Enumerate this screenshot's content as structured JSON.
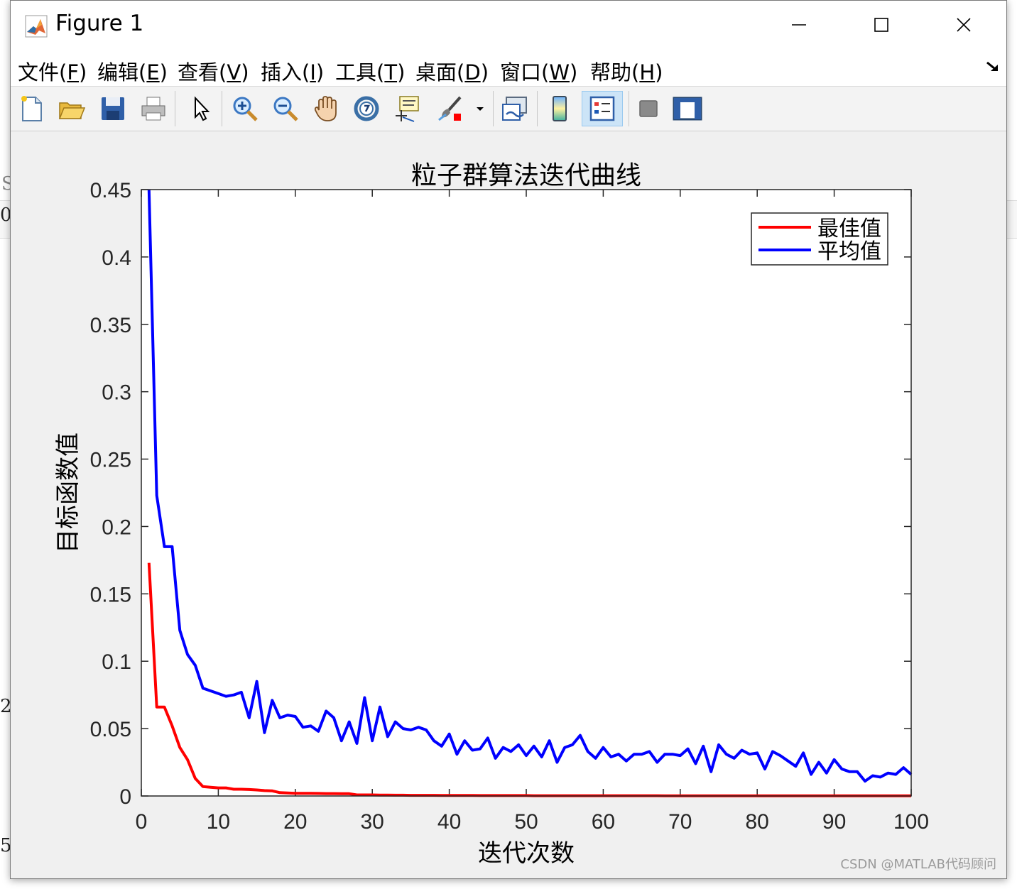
{
  "window": {
    "title": "Figure 1"
  },
  "menu": [
    {
      "label": "文件",
      "key": "F"
    },
    {
      "label": "编辑",
      "key": "E"
    },
    {
      "label": "查看",
      "key": "V"
    },
    {
      "label": "插入",
      "key": "I"
    },
    {
      "label": "工具",
      "key": "T"
    },
    {
      "label": "桌面",
      "key": "D"
    },
    {
      "label": "窗口",
      "key": "W"
    },
    {
      "label": "帮助",
      "key": "H"
    }
  ],
  "toolbar": [
    "new-figure",
    "open-file",
    "save-figure",
    "print-figure",
    "edit-plot",
    "zoom-in",
    "zoom-out",
    "pan",
    "rotate-3d",
    "data-cursor",
    "brush",
    "link-plot",
    "colorbar",
    "legend",
    "hide-plot-tools",
    "show-plot-tools"
  ],
  "background_fragments": {
    "a": "S",
    "b": "0",
    "c": "2:",
    "d": "5:"
  },
  "watermark": "CSDN @MATLAB代码顾问",
  "chart_data": {
    "type": "line",
    "title": "粒子群算法迭代曲线",
    "xlabel": "迭代次数",
    "ylabel": "目标函数值",
    "xlim": [
      0,
      100
    ],
    "ylim": [
      0,
      0.45
    ],
    "xticks": [
      "0",
      "10",
      "20",
      "30",
      "40",
      "50",
      "60",
      "70",
      "80",
      "90",
      "100"
    ],
    "yticks": [
      "0",
      "0.05",
      "0.1",
      "0.15",
      "0.2",
      "0.25",
      "0.3",
      "0.35",
      "0.4",
      "0.45"
    ],
    "legend_position": "top-right",
    "grid": false,
    "x": [
      1,
      2,
      3,
      4,
      5,
      6,
      7,
      8,
      9,
      10,
      11,
      12,
      13,
      14,
      15,
      16,
      17,
      18,
      19,
      20,
      21,
      22,
      23,
      24,
      25,
      26,
      27,
      28,
      29,
      30,
      31,
      32,
      33,
      34,
      35,
      36,
      37,
      38,
      39,
      40,
      41,
      42,
      43,
      44,
      45,
      46,
      47,
      48,
      49,
      50,
      51,
      52,
      53,
      54,
      55,
      56,
      57,
      58,
      59,
      60,
      61,
      62,
      63,
      64,
      65,
      66,
      67,
      68,
      69,
      70,
      71,
      72,
      73,
      74,
      75,
      76,
      77,
      78,
      79,
      80,
      81,
      82,
      83,
      84,
      85,
      86,
      87,
      88,
      89,
      90,
      91,
      92,
      93,
      94,
      95,
      96,
      97,
      98,
      99,
      100
    ],
    "series": [
      {
        "name": "最佳值",
        "color": "#ff0000",
        "values": [
          0.173,
          0.066,
          0.066,
          0.052,
          0.036,
          0.027,
          0.013,
          0.007,
          0.0065,
          0.006,
          0.006,
          0.005,
          0.005,
          0.0048,
          0.0045,
          0.004,
          0.0038,
          0.0025,
          0.0022,
          0.002,
          0.002,
          0.002,
          0.0019,
          0.0018,
          0.0018,
          0.0017,
          0.0017,
          0.0008,
          0.0008,
          0.0008,
          0.0007,
          0.0007,
          0.0006,
          0.0006,
          0.0005,
          0.0005,
          0.0005,
          0.0005,
          0.0004,
          0.0004,
          0.0004,
          0.0004,
          0.0004,
          0.0003,
          0.0003,
          0.0003,
          0.0003,
          0.0003,
          0.0003,
          0.0003,
          0.0002,
          0.0002,
          0.0002,
          0.0002,
          0.0002,
          0.0002,
          0.0002,
          0.0002,
          0.0002,
          0.0002,
          0.0002,
          0.0002,
          0.0002,
          0.0002,
          0.0002,
          0.0002,
          0.0002,
          0.0001,
          0.0001,
          0.0001,
          0.0001,
          0.0001,
          0.0001,
          0.0001,
          0.0001,
          0.0001,
          0.0001,
          0.0001,
          0.0001,
          0.0001,
          0.0001,
          0.0001,
          0.0001,
          0.0001,
          0.0001,
          0.0001,
          0.0001,
          0.0001,
          0.0001,
          0.0001,
          0.0001,
          0.0001,
          0.0001,
          0.0001,
          0.0001,
          0.0001,
          0.0001,
          0.0001,
          0.0001,
          0.0001
        ]
      },
      {
        "name": "平均值",
        "color": "#0000ff",
        "values": [
          0.45,
          0.223,
          0.185,
          0.185,
          0.123,
          0.105,
          0.097,
          0.08,
          0.078,
          0.076,
          0.074,
          0.075,
          0.077,
          0.058,
          0.085,
          0.047,
          0.071,
          0.058,
          0.06,
          0.059,
          0.051,
          0.052,
          0.048,
          0.063,
          0.058,
          0.041,
          0.055,
          0.039,
          0.073,
          0.041,
          0.066,
          0.044,
          0.055,
          0.05,
          0.049,
          0.051,
          0.049,
          0.041,
          0.037,
          0.046,
          0.031,
          0.041,
          0.034,
          0.035,
          0.043,
          0.028,
          0.036,
          0.033,
          0.038,
          0.03,
          0.037,
          0.029,
          0.041,
          0.025,
          0.036,
          0.038,
          0.045,
          0.033,
          0.028,
          0.036,
          0.029,
          0.031,
          0.026,
          0.031,
          0.031,
          0.033,
          0.025,
          0.031,
          0.031,
          0.03,
          0.035,
          0.024,
          0.037,
          0.018,
          0.038,
          0.031,
          0.028,
          0.034,
          0.031,
          0.032,
          0.02,
          0.033,
          0.03,
          0.026,
          0.022,
          0.032,
          0.016,
          0.025,
          0.017,
          0.027,
          0.02,
          0.018,
          0.018,
          0.011,
          0.015,
          0.014,
          0.017,
          0.016,
          0.021,
          0.016
        ]
      }
    ]
  }
}
